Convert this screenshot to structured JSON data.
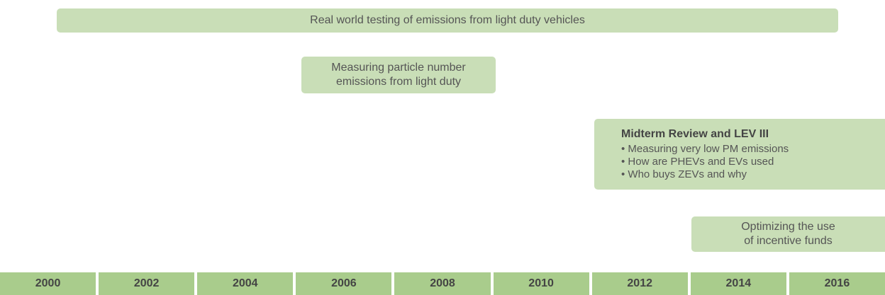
{
  "timeline": {
    "bars": [
      {
        "lines": [
          "Real world testing of emissions from light duty vehicles"
        ]
      },
      {
        "lines": [
          "Measuring particle number",
          "emissions from light duty"
        ]
      },
      {
        "title": "Midterm Review and LEV III",
        "bullets": [
          "Measuring very low PM emissions",
          "How are PHEVs and EVs used",
          "Who buys ZEVs and why"
        ]
      },
      {
        "lines": [
          "Optimizing the use",
          "of incentive funds"
        ]
      }
    ],
    "years": [
      "2000",
      "2002",
      "2004",
      "2006",
      "2008",
      "2010",
      "2012",
      "2014",
      "2016"
    ]
  }
}
